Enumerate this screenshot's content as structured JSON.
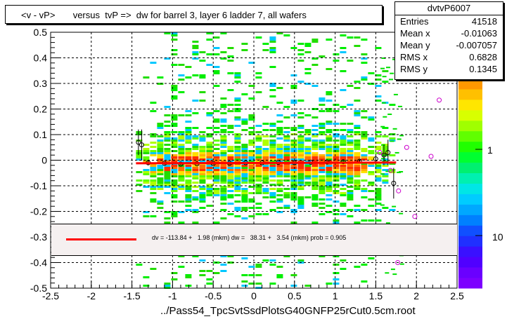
{
  "title": "<v - vP>       versus  tvP =>  dw for barrel 3, layer 6 ladder 7, all wafers",
  "stats": {
    "name": "dvtvP6007",
    "rows": [
      {
        "label": "Entries",
        "value": "41518"
      },
      {
        "label": "Mean x",
        "value": "-0.01063"
      },
      {
        "label": "Mean y",
        "value": "-0.007057"
      },
      {
        "label": "RMS x",
        "value": "0.6828"
      },
      {
        "label": "RMS y",
        "value": "0.1345"
      }
    ]
  },
  "fit_label": "dv = -113.84 +   1.98 (mkm) dw =   38.31 +   3.54 (mkm) prob = 0.905",
  "footer": "../Pass54_TpcSvtSsdPlotsG40GNFP25rCut0.5cm.root",
  "colorbar": {
    "labels": [
      "10",
      "1",
      "10"
    ],
    "colors": [
      "#7d00ff",
      "#6a00ff",
      "#5000ff",
      "#3a10ff",
      "#2030ff",
      "#1050ff",
      "#0080ff",
      "#00a8ff",
      "#00ccff",
      "#00e6e6",
      "#00f0b0",
      "#00f070",
      "#00ff30",
      "#20ff00",
      "#60ff00",
      "#a0ff00",
      "#d8ff00",
      "#ffe600",
      "#ffc000",
      "#ff9800"
    ]
  },
  "chart_data": {
    "type": "heatmap",
    "xlim": [
      -2.5,
      2.5
    ],
    "ylim": [
      -0.5,
      0.5
    ],
    "x_ticks": [
      "-2.5",
      "-2",
      "-1.5",
      "-1",
      "-0.5",
      "0",
      "0.5",
      "1",
      "1.5",
      "2",
      "2.5"
    ],
    "y_ticks": [
      "0.5",
      "0.4",
      "0.3",
      "0.2",
      "0.1",
      "0",
      "-0.1",
      "-0.2",
      "-0.3",
      "-0.4",
      "-0.5"
    ],
    "fit_line": {
      "x": [
        -1.45,
        1.75
      ],
      "y": [
        -0.012,
        -0.009
      ]
    },
    "profile_points": [
      {
        "x": -1.42,
        "y": 0.07,
        "err": 0.05
      },
      {
        "x": -1.38,
        "y": 0.06,
        "err": 0.06
      },
      {
        "x": -1.3,
        "y": -0.01,
        "err": 0.01
      },
      {
        "x": -1.1,
        "y": -0.012,
        "err": 0.005
      },
      {
        "x": -0.9,
        "y": -0.015,
        "err": 0.004
      },
      {
        "x": -0.7,
        "y": -0.014,
        "err": 0.004
      },
      {
        "x": -0.5,
        "y": -0.013,
        "err": 0.004
      },
      {
        "x": -0.3,
        "y": -0.012,
        "err": 0.004
      },
      {
        "x": -0.1,
        "y": -0.01,
        "err": 0.004
      },
      {
        "x": 0.1,
        "y": -0.01,
        "err": 0.004
      },
      {
        "x": 0.3,
        "y": -0.009,
        "err": 0.004
      },
      {
        "x": 0.5,
        "y": -0.01,
        "err": 0.004
      },
      {
        "x": 0.7,
        "y": -0.008,
        "err": 0.004
      },
      {
        "x": 0.9,
        "y": -0.007,
        "err": 0.004
      },
      {
        "x": 1.1,
        "y": -0.006,
        "err": 0.005
      },
      {
        "x": 1.3,
        "y": -0.004,
        "err": 0.006
      },
      {
        "x": 1.5,
        "y": 0.005,
        "err": 0.01
      },
      {
        "x": 1.6,
        "y": 0.02,
        "err": 0.04
      },
      {
        "x": 1.65,
        "y": 0.03,
        "err": 0.05
      },
      {
        "x": 1.72,
        "y": -0.09,
        "err": 0.06
      }
    ],
    "outlier_points": [
      {
        "x": 1.55,
        "y": 0.03
      },
      {
        "x": 1.68,
        "y": -0.04
      },
      {
        "x": 1.78,
        "y": -0.12
      },
      {
        "x": 1.88,
        "y": 0.05
      },
      {
        "x": 1.98,
        "y": -0.22
      },
      {
        "x": 2.18,
        "y": 0.015
      },
      {
        "x": 2.28,
        "y": 0.235
      },
      {
        "x": 1.77,
        "y": -0.4
      }
    ]
  }
}
